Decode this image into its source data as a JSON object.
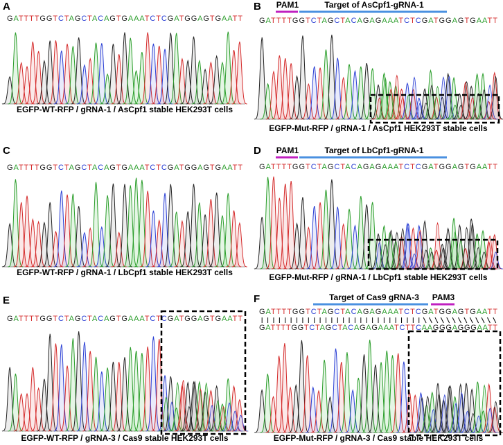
{
  "panels": [
    {
      "label": "A",
      "annotations": [],
      "sequences": [
        "GATTTTGGTCTAGCTACAGTGAAATCTCGATGGAGTGAATT"
      ],
      "caption": "EGFP-WT-RFP / gRNA-1 / AsCpf1 stable HEK293T cells"
    },
    {
      "label": "B",
      "annotations": [
        "PAM1",
        "Target of AsCpf1-gRNA-1"
      ],
      "sequences": [
        "GATTTTGGTCTAGCTACAGAGAAATCTCGATGGAGTGAATT"
      ],
      "caption": "EGFP-Mut-RFP / gRNA-1 / AsCpf1 HEK293T stable cells"
    },
    {
      "label": "C",
      "annotations": [],
      "sequences": [
        "GATTTTGGTCTAGCTACAGTGAAATCTCGATGGAGTGAATT"
      ],
      "caption": "EGFP-WT-RFP / gRNA-1 / LbCpf1 stable HEK293T cells"
    },
    {
      "label": "D",
      "annotations": [
        "PAM1",
        "Target of LbCpf1-gRNA-1"
      ],
      "sequences": [
        "GATTTTGGTCTAGCTACAGAGAAATCTCGATGGAGTGAATT"
      ],
      "caption": "EGFP-Mut-RFP / gRNA-1 / LbCpf1 stable HEK293T cells"
    },
    {
      "label": "E",
      "annotations": [],
      "sequences": [
        "GATTTTGGTCTAGCTACAGTGAAATCTCGATGGAGTGAATT"
      ],
      "caption": "EGFP-WT-RFP / gRNA-3 / Cas9 stable HEK293T cells"
    },
    {
      "label": "F",
      "annotations": [
        "Target of Cas9 gRNA-3",
        "PAM3"
      ],
      "sequences": [
        "GATTTTGGTCTAGCTACAGAGAAATCTCGATGGAGTGAATT",
        "GATTTTGGTCTAGCTACAGAGAAATCTTCAAGGGAGGGAATT"
      ],
      "caption": "EGFP-Mut-RFP / gRNA-3 / Cas9 stable HEK293T cells"
    }
  ]
}
